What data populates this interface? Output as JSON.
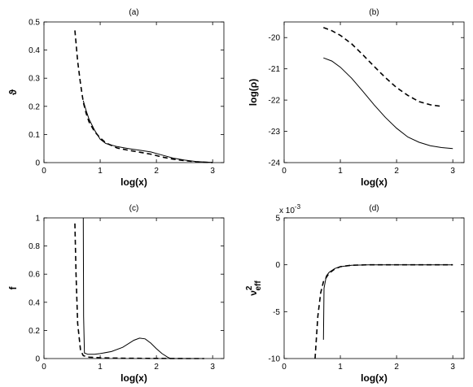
{
  "chart_data": [
    {
      "type": "line",
      "title": "(a)",
      "xlabel": "log(x)",
      "ylabel": "ϑ",
      "xlim": [
        0,
        3.2
      ],
      "ylim": [
        0,
        0.5
      ],
      "xticks": [
        "0",
        "1",
        "2",
        "3"
      ],
      "yticks": [
        "0",
        "0.1",
        "0.2",
        "0.3",
        "0.4",
        "0.5"
      ],
      "grid": false,
      "series": [
        {
          "style": "solid",
          "x": [
            0.7,
            0.75,
            0.8,
            0.9,
            1.0,
            1.1,
            1.3,
            1.5,
            1.7,
            1.9,
            2.1,
            2.3,
            2.5,
            2.7,
            2.85,
            3.0
          ],
          "y": [
            0.22,
            0.185,
            0.155,
            0.115,
            0.083,
            0.068,
            0.057,
            0.05,
            0.044,
            0.038,
            0.027,
            0.016,
            0.009,
            0.004,
            0.002,
            0.001
          ]
        },
        {
          "style": "dashed",
          "x": [
            0.55,
            0.6,
            0.65,
            0.7,
            0.75,
            0.8,
            0.9,
            1.0,
            1.1,
            1.3,
            1.5,
            1.7,
            1.9,
            2.1,
            2.3,
            2.5,
            2.7,
            2.9,
            3.0
          ],
          "y": [
            0.47,
            0.36,
            0.28,
            0.215,
            0.175,
            0.145,
            0.11,
            0.088,
            0.07,
            0.052,
            0.044,
            0.037,
            0.03,
            0.02,
            0.012,
            0.007,
            0.003,
            0.001,
            0.0
          ]
        }
      ]
    },
    {
      "type": "line",
      "title": "(b)",
      "xlabel": "log(x)",
      "ylabel": "log(ρ)",
      "xlim": [
        0,
        3.2
      ],
      "ylim": [
        -24,
        -19.5
      ],
      "xticks": [
        "0",
        "1",
        "2",
        "3"
      ],
      "yticks": [
        "-24",
        "-23",
        "-22",
        "-21",
        "-20"
      ],
      "grid": false,
      "series": [
        {
          "style": "solid",
          "x": [
            0.7,
            0.85,
            1.0,
            1.2,
            1.4,
            1.6,
            1.8,
            2.0,
            2.2,
            2.4,
            2.6,
            2.8,
            3.0
          ],
          "y": [
            -20.65,
            -20.75,
            -20.95,
            -21.3,
            -21.72,
            -22.15,
            -22.55,
            -22.9,
            -23.18,
            -23.35,
            -23.46,
            -23.52,
            -23.55
          ]
        },
        {
          "style": "dashed",
          "x": [
            0.7,
            0.85,
            1.0,
            1.2,
            1.4,
            1.6,
            1.8,
            2.0,
            2.2,
            2.4,
            2.6,
            2.8
          ],
          "y": [
            -19.68,
            -19.78,
            -19.93,
            -20.2,
            -20.55,
            -20.92,
            -21.28,
            -21.6,
            -21.85,
            -22.05,
            -22.15,
            -22.2
          ]
        }
      ]
    },
    {
      "type": "line",
      "title": "(c)",
      "xlabel": "log(x)",
      "ylabel": "f",
      "xlim": [
        0,
        3.2
      ],
      "ylim": [
        0,
        1
      ],
      "xticks": [
        "0",
        "1",
        "2",
        "3"
      ],
      "yticks": [
        "0",
        "0.2",
        "0.4",
        "0.6",
        "0.8",
        "1"
      ],
      "grid": false,
      "series": [
        {
          "style": "solid",
          "x": [
            0.7,
            0.705,
            0.72,
            0.78,
            0.9,
            1.0,
            1.2,
            1.4,
            1.6,
            1.7,
            1.8,
            1.9,
            2.0,
            2.1,
            2.2,
            2.25,
            2.3,
            2.5,
            2.7,
            2.85
          ],
          "y": [
            1.0,
            0.3,
            0.04,
            0.03,
            0.03,
            0.035,
            0.05,
            0.08,
            0.13,
            0.145,
            0.14,
            0.11,
            0.07,
            0.035,
            0.01,
            0.0,
            0.0,
            0.0,
            0.0,
            0.0
          ]
        },
        {
          "style": "dashed",
          "x": [
            0.55,
            0.57,
            0.6,
            0.65,
            0.7,
            0.8,
            1.0,
            1.5,
            2.0,
            2.5,
            2.85
          ],
          "y": [
            0.96,
            0.6,
            0.25,
            0.06,
            0.02,
            0.01,
            0.005,
            0.002,
            0.001,
            0.0,
            0.0
          ]
        }
      ]
    },
    {
      "type": "line",
      "title": "(d)",
      "xlabel": "log(x)",
      "ylabel": "ν²eff",
      "ylabel_base": "ν",
      "ylabel_sup": "2",
      "ylabel_sub": "eff",
      "scale_note": "x 10",
      "scale_exp": "-3",
      "xlim": [
        0,
        3.2
      ],
      "ylim": [
        -10,
        5
      ],
      "xticks": [
        "0",
        "1",
        "2",
        "3"
      ],
      "yticks": [
        "-10",
        "-5",
        "0",
        "5"
      ],
      "grid": false,
      "series": [
        {
          "style": "solid",
          "x": [
            0.7,
            0.71,
            0.75,
            0.8,
            0.9,
            1.0,
            1.2,
            1.5,
            2.0,
            2.5,
            3.0
          ],
          "y": [
            -8.0,
            -2.5,
            -1.2,
            -0.8,
            -0.4,
            -0.2,
            -0.05,
            0.0,
            0.0,
            0.0,
            0.0
          ]
        },
        {
          "style": "dashed",
          "x": [
            0.55,
            0.6,
            0.65,
            0.7,
            0.8,
            0.9,
            1.0,
            1.2,
            1.5,
            2.0,
            2.5,
            3.0
          ],
          "y": [
            -10.0,
            -5.5,
            -3.0,
            -1.8,
            -0.9,
            -0.45,
            -0.2,
            -0.05,
            0.0,
            0.0,
            0.0,
            0.0
          ]
        }
      ]
    }
  ]
}
